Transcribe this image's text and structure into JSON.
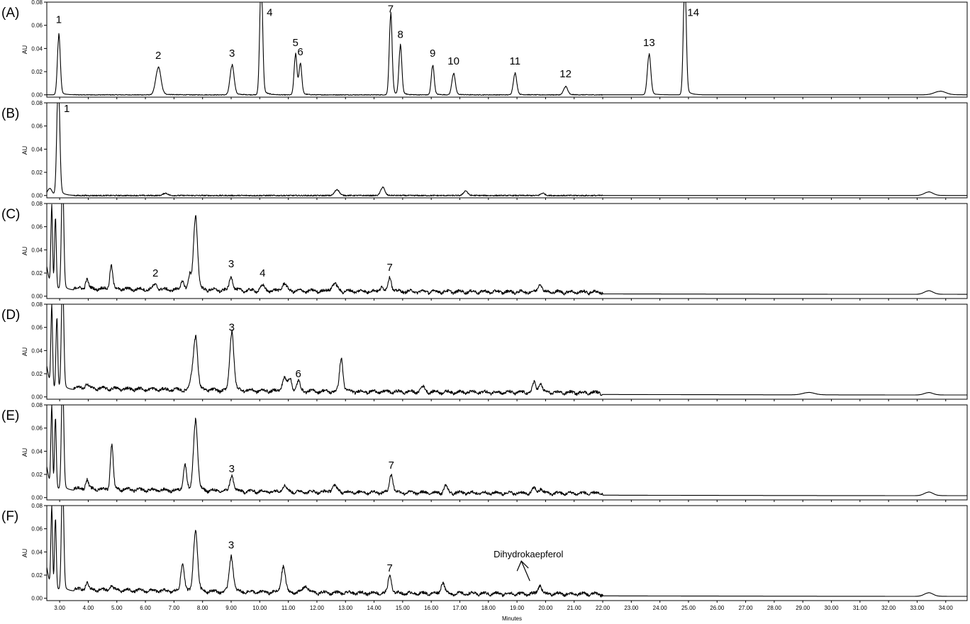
{
  "chart_data": {
    "type": "line",
    "xlabel": "Minutes",
    "x_tick_labels": [
      "3.00",
      "4.00",
      "5.00",
      "6.00",
      "7.00",
      "8.00",
      "9.00",
      "10.00",
      "11.00",
      "12.00",
      "13.00",
      "14.00",
      "15.00",
      "16.00",
      "17.00",
      "18.00",
      "19.00",
      "20.00",
      "21.00",
      "22.00",
      "23.00",
      "24.00",
      "25.00",
      "26.00",
      "27.00",
      "28.00",
      "29.00",
      "30.00",
      "31.00",
      "32.00",
      "33.00",
      "34.00"
    ],
    "xlim": [
      2.55,
      34.75
    ],
    "ylabel": "AU",
    "y_tick_labels": [
      "0.00",
      "0.02",
      "0.04",
      "0.06",
      "0.08"
    ],
    "ylim": [
      -0.002,
      0.08
    ],
    "grid": false,
    "panels": [
      {
        "letter": "(A)",
        "baseline": 0.0,
        "peaks": [
          {
            "label": "1",
            "rt": 2.97,
            "height": 0.05,
            "width": 0.05,
            "label_y": 0.062
          },
          {
            "label": "2",
            "rt": 6.45,
            "height": 0.023,
            "width": 0.09,
            "label_y": 0.031
          },
          {
            "label": "3",
            "rt": 9.03,
            "height": 0.025,
            "width": 0.07,
            "label_y": 0.033
          },
          {
            "label": "4",
            "rt": 10.05,
            "height": 0.1,
            "width": 0.05,
            "label_y": 0.068
          },
          {
            "label": "5",
            "rt": 11.25,
            "height": 0.034,
            "width": 0.05,
            "label_y": 0.042
          },
          {
            "label": "6",
            "rt": 11.42,
            "height": 0.026,
            "width": 0.05,
            "label_y": 0.034
          },
          {
            "label": "7",
            "rt": 14.58,
            "height": 0.068,
            "width": 0.05,
            "label_y": 0.071
          },
          {
            "label": "8",
            "rt": 14.92,
            "height": 0.041,
            "width": 0.05,
            "label_y": 0.049
          },
          {
            "label": "9",
            "rt": 16.05,
            "height": 0.025,
            "width": 0.05,
            "label_y": 0.033
          },
          {
            "label": "10",
            "rt": 16.78,
            "height": 0.018,
            "width": 0.06,
            "label_y": 0.026
          },
          {
            "label": "11",
            "rt": 18.93,
            "height": 0.018,
            "width": 0.06,
            "label_y": 0.026
          },
          {
            "label": "12",
            "rt": 20.7,
            "height": 0.007,
            "width": 0.07,
            "label_y": 0.015
          },
          {
            "label": "13",
            "rt": 23.62,
            "height": 0.034,
            "width": 0.06,
            "label_y": 0.042
          },
          {
            "label": "14",
            "rt": 24.87,
            "height": 0.1,
            "width": 0.05,
            "label_y": 0.068
          }
        ]
      },
      {
        "letter": "(B)",
        "baseline": 0.0,
        "peaks": [
          {
            "label": "1",
            "rt": 2.95,
            "height": 0.1,
            "width": 0.05,
            "label_y": 0.072
          }
        ]
      },
      {
        "letter": "(C)",
        "baseline": 0.004,
        "peaks": [
          {
            "label": "2",
            "rt": 6.35,
            "height": 0.004,
            "width": 0.08,
            "label_y": 0.017
          },
          {
            "label": "3",
            "rt": 9.0,
            "height": 0.012,
            "width": 0.06,
            "label_y": 0.025
          },
          {
            "label": "4",
            "rt": 10.1,
            "height": 0.004,
            "width": 0.07,
            "label_y": 0.017
          },
          {
            "label": "7",
            "rt": 14.55,
            "height": 0.012,
            "width": 0.06,
            "label_y": 0.022
          }
        ]
      },
      {
        "letter": "(D)",
        "baseline": 0.005,
        "peaks": [
          {
            "label": "3",
            "rt": 9.02,
            "height": 0.05,
            "width": 0.07,
            "label_y": 0.057
          },
          {
            "label": "6",
            "rt": 11.35,
            "height": 0.008,
            "width": 0.06,
            "label_y": 0.017
          }
        ]
      },
      {
        "letter": "(E)",
        "baseline": 0.005,
        "peaks": [
          {
            "label": "3",
            "rt": 9.02,
            "height": 0.014,
            "width": 0.06,
            "label_y": 0.022
          },
          {
            "label": "7",
            "rt": 14.6,
            "height": 0.016,
            "width": 0.06,
            "label_y": 0.025
          }
        ]
      },
      {
        "letter": "(F)",
        "baseline": 0.005,
        "peaks": [
          {
            "label": "3",
            "rt": 9.0,
            "height": 0.03,
            "width": 0.07,
            "label_y": 0.043
          },
          {
            "label": "7",
            "rt": 14.55,
            "height": 0.015,
            "width": 0.06,
            "label_y": 0.023
          }
        ],
        "annotation": {
          "text": "Dihydrokaepferol",
          "rt": 19.45,
          "height": 0.011
        }
      }
    ]
  }
}
